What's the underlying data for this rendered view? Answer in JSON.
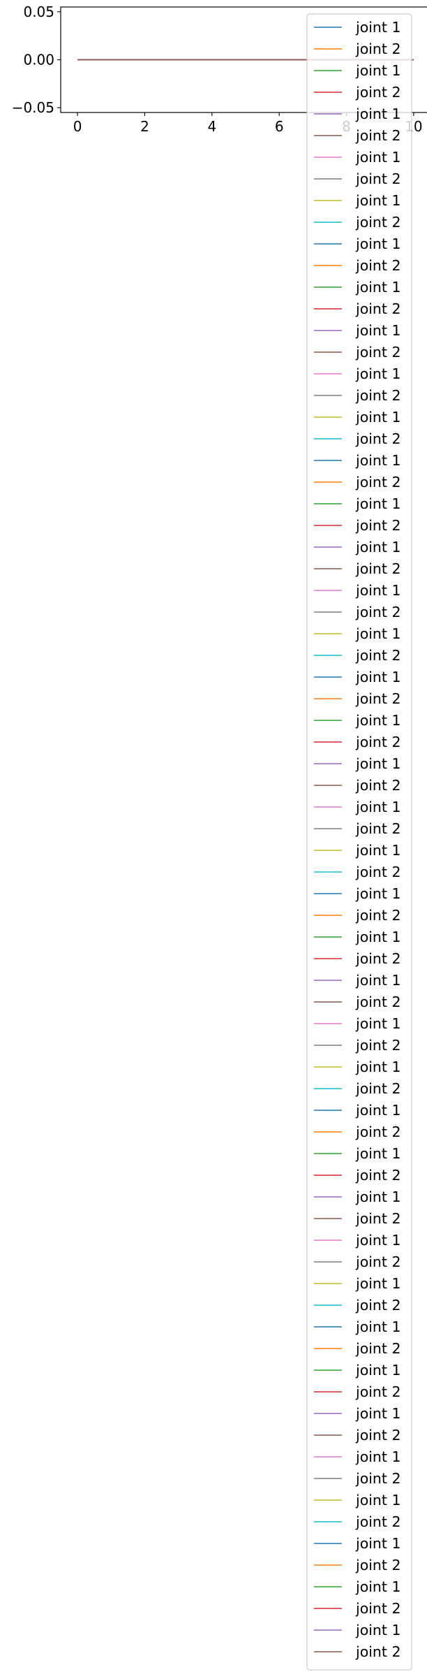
{
  "chart_data": {
    "type": "line",
    "title": "",
    "xlabel": "",
    "ylabel": "",
    "xlim": [
      -0.5,
      10.5
    ],
    "ylim": [
      -0.055,
      0.055
    ],
    "x_ticks": [
      0,
      2,
      4,
      6,
      8,
      10
    ],
    "x_tick_labels": [
      "0",
      "2",
      "4",
      "6",
      "8",
      "10"
    ],
    "y_ticks": [
      -0.05,
      0.0,
      0.05
    ],
    "y_tick_labels": [
      "−0.05",
      "0.00",
      "0.05"
    ],
    "grid": false,
    "legend_position": "top-right",
    "x": [
      0,
      10
    ],
    "palette": [
      "#1f77b4",
      "#ff7f0e",
      "#2ca02c",
      "#d62728",
      "#9467bd",
      "#8c564b",
      "#e377c2",
      "#7f7f7f",
      "#bcbd22",
      "#17becf"
    ],
    "series": [
      {
        "name": "joint 1",
        "values": [
          0,
          0
        ]
      },
      {
        "name": "joint 2",
        "values": [
          0,
          0
        ]
      },
      {
        "name": "joint 1",
        "values": [
          0,
          0
        ]
      },
      {
        "name": "joint 2",
        "values": [
          0,
          0
        ]
      },
      {
        "name": "joint 1",
        "values": [
          0,
          0
        ]
      },
      {
        "name": "joint 2",
        "values": [
          0,
          0
        ]
      },
      {
        "name": "joint 1",
        "values": [
          0,
          0
        ]
      },
      {
        "name": "joint 2",
        "values": [
          0,
          0
        ]
      },
      {
        "name": "joint 1",
        "values": [
          0,
          0
        ]
      },
      {
        "name": "joint 2",
        "values": [
          0,
          0
        ]
      },
      {
        "name": "joint 1",
        "values": [
          0,
          0
        ]
      },
      {
        "name": "joint 2",
        "values": [
          0,
          0
        ]
      },
      {
        "name": "joint 1",
        "values": [
          0,
          0
        ]
      },
      {
        "name": "joint 2",
        "values": [
          0,
          0
        ]
      },
      {
        "name": "joint 1",
        "values": [
          0,
          0
        ]
      },
      {
        "name": "joint 2",
        "values": [
          0,
          0
        ]
      },
      {
        "name": "joint 1",
        "values": [
          0,
          0
        ]
      },
      {
        "name": "joint 2",
        "values": [
          0,
          0
        ]
      },
      {
        "name": "joint 1",
        "values": [
          0,
          0
        ]
      },
      {
        "name": "joint 2",
        "values": [
          0,
          0
        ]
      },
      {
        "name": "joint 1",
        "values": [
          0,
          0
        ]
      },
      {
        "name": "joint 2",
        "values": [
          0,
          0
        ]
      },
      {
        "name": "joint 1",
        "values": [
          0,
          0
        ]
      },
      {
        "name": "joint 2",
        "values": [
          0,
          0
        ]
      },
      {
        "name": "joint 1",
        "values": [
          0,
          0
        ]
      },
      {
        "name": "joint 2",
        "values": [
          0,
          0
        ]
      },
      {
        "name": "joint 1",
        "values": [
          0,
          0
        ]
      },
      {
        "name": "joint 2",
        "values": [
          0,
          0
        ]
      },
      {
        "name": "joint 1",
        "values": [
          0,
          0
        ]
      },
      {
        "name": "joint 2",
        "values": [
          0,
          0
        ]
      },
      {
        "name": "joint 1",
        "values": [
          0,
          0
        ]
      },
      {
        "name": "joint 2",
        "values": [
          0,
          0
        ]
      },
      {
        "name": "joint 1",
        "values": [
          0,
          0
        ]
      },
      {
        "name": "joint 2",
        "values": [
          0,
          0
        ]
      },
      {
        "name": "joint 1",
        "values": [
          0,
          0
        ]
      },
      {
        "name": "joint 2",
        "values": [
          0,
          0
        ]
      },
      {
        "name": "joint 1",
        "values": [
          0,
          0
        ]
      },
      {
        "name": "joint 2",
        "values": [
          0,
          0
        ]
      },
      {
        "name": "joint 1",
        "values": [
          0,
          0
        ]
      },
      {
        "name": "joint 2",
        "values": [
          0,
          0
        ]
      },
      {
        "name": "joint 1",
        "values": [
          0,
          0
        ]
      },
      {
        "name": "joint 2",
        "values": [
          0,
          0
        ]
      },
      {
        "name": "joint 1",
        "values": [
          0,
          0
        ]
      },
      {
        "name": "joint 2",
        "values": [
          0,
          0
        ]
      },
      {
        "name": "joint 1",
        "values": [
          0,
          0
        ]
      },
      {
        "name": "joint 2",
        "values": [
          0,
          0
        ]
      },
      {
        "name": "joint 1",
        "values": [
          0,
          0
        ]
      },
      {
        "name": "joint 2",
        "values": [
          0,
          0
        ]
      },
      {
        "name": "joint 1",
        "values": [
          0,
          0
        ]
      },
      {
        "name": "joint 2",
        "values": [
          0,
          0
        ]
      },
      {
        "name": "joint 1",
        "values": [
          0,
          0
        ]
      },
      {
        "name": "joint 2",
        "values": [
          0,
          0
        ]
      },
      {
        "name": "joint 1",
        "values": [
          0,
          0
        ]
      },
      {
        "name": "joint 2",
        "values": [
          0,
          0
        ]
      },
      {
        "name": "joint 1",
        "values": [
          0,
          0
        ]
      },
      {
        "name": "joint 2",
        "values": [
          0,
          0
        ]
      },
      {
        "name": "joint 1",
        "values": [
          0,
          0
        ]
      },
      {
        "name": "joint 2",
        "values": [
          0,
          0
        ]
      },
      {
        "name": "joint 1",
        "values": [
          0,
          0
        ]
      },
      {
        "name": "joint 2",
        "values": [
          0,
          0
        ]
      },
      {
        "name": "joint 1",
        "values": [
          0,
          0
        ]
      },
      {
        "name": "joint 2",
        "values": [
          0,
          0
        ]
      },
      {
        "name": "joint 1",
        "values": [
          0,
          0
        ]
      },
      {
        "name": "joint 2",
        "values": [
          0,
          0
        ]
      },
      {
        "name": "joint 1",
        "values": [
          0,
          0
        ]
      },
      {
        "name": "joint 2",
        "values": [
          0,
          0
        ]
      },
      {
        "name": "joint 1",
        "values": [
          0,
          0
        ]
      },
      {
        "name": "joint 2",
        "values": [
          0,
          0
        ]
      },
      {
        "name": "joint 1",
        "values": [
          0,
          0
        ]
      },
      {
        "name": "joint 2",
        "values": [
          0,
          0
        ]
      },
      {
        "name": "joint 1",
        "values": [
          0,
          0
        ]
      },
      {
        "name": "joint 2",
        "values": [
          0,
          0
        ]
      },
      {
        "name": "joint 1",
        "values": [
          0,
          0
        ]
      },
      {
        "name": "joint 2",
        "values": [
          0,
          0
        ]
      },
      {
        "name": "joint 1",
        "values": [
          0,
          0
        ]
      },
      {
        "name": "joint 2",
        "values": [
          0,
          0
        ]
      }
    ]
  }
}
